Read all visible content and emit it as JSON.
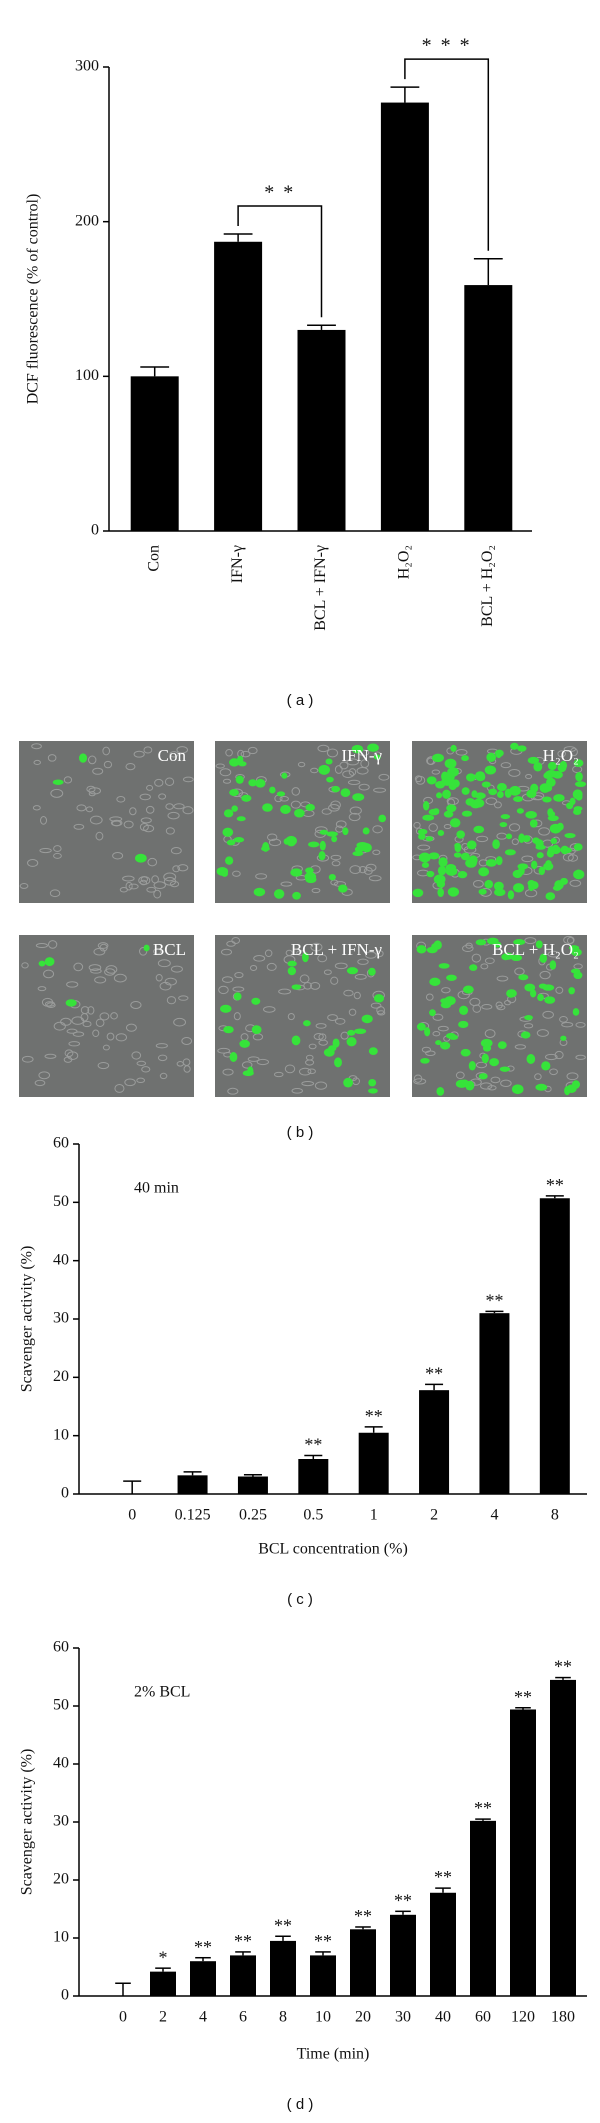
{
  "chart_data": [
    {
      "type": "bar",
      "ylabel": "DCF fluorescence (% of control)",
      "categories": [
        "Con",
        "IFN-γ",
        "BCL + IFN-γ",
        "H₂O₂",
        "BCL + H₂O₂"
      ],
      "values": [
        100,
        187,
        130,
        277,
        159
      ],
      "errors": [
        6,
        5,
        3,
        10,
        17
      ],
      "color": "#000000",
      "ylim": [
        0,
        300
      ],
      "yticks": [
        0,
        100,
        200,
        300
      ],
      "brackets": [
        {
          "from": 1,
          "to": 2,
          "label": "* *"
        },
        {
          "from": 3,
          "to": 4,
          "label": "* * *"
        }
      ],
      "caption": "( a )"
    },
    {
      "type": "bar",
      "annotation": "40 min",
      "xlabel": "BCL concentration (%)",
      "ylabel": "Scavenger activity (%)",
      "categories": [
        "0",
        "0.125",
        "0.25",
        "0.5",
        "1",
        "2",
        "4",
        "8"
      ],
      "values": [
        0,
        3.2,
        3,
        6,
        10.5,
        17.8,
        31,
        50.7
      ],
      "errors": [
        2.2,
        0.6,
        0.3,
        0.6,
        1,
        1,
        0.3,
        0.4
      ],
      "significance": [
        null,
        null,
        null,
        "**",
        "**",
        "**",
        "**",
        "**"
      ],
      "color": "#000000",
      "ylim": [
        0,
        60
      ],
      "yticks": [
        0,
        10,
        20,
        30,
        40,
        50,
        60
      ],
      "caption": "( c )"
    },
    {
      "type": "bar",
      "annotation": "2% BCL",
      "xlabel": "Time (min)",
      "ylabel": "Scavenger activity (%)",
      "categories": [
        "0",
        "2",
        "4",
        "6",
        "8",
        "10",
        "20",
        "30",
        "40",
        "60",
        "120",
        "180"
      ],
      "values": [
        0,
        4.2,
        6,
        7,
        9.5,
        7,
        11.5,
        14,
        17.8,
        30.2,
        49.4,
        54.5
      ],
      "errors": [
        2.2,
        0.6,
        0.6,
        0.6,
        0.8,
        0.6,
        0.4,
        0.6,
        0.8,
        0.3,
        0.3,
        0.4
      ],
      "significance": [
        null,
        "*",
        "**",
        "**",
        "**",
        "**",
        "**",
        "**",
        "**",
        "**",
        "**",
        "**"
      ],
      "color": "#000000",
      "ylim": [
        0,
        60
      ],
      "yticks": [
        0,
        10,
        20,
        30,
        40,
        50,
        60
      ],
      "caption": "( d )"
    }
  ],
  "image_panel": {
    "labels": [
      "Con",
      "IFN-γ",
      "H₂O₂",
      "BCL",
      "BCL + IFN-γ",
      "BCL + H₂O₂"
    ],
    "caption": "( b )"
  }
}
